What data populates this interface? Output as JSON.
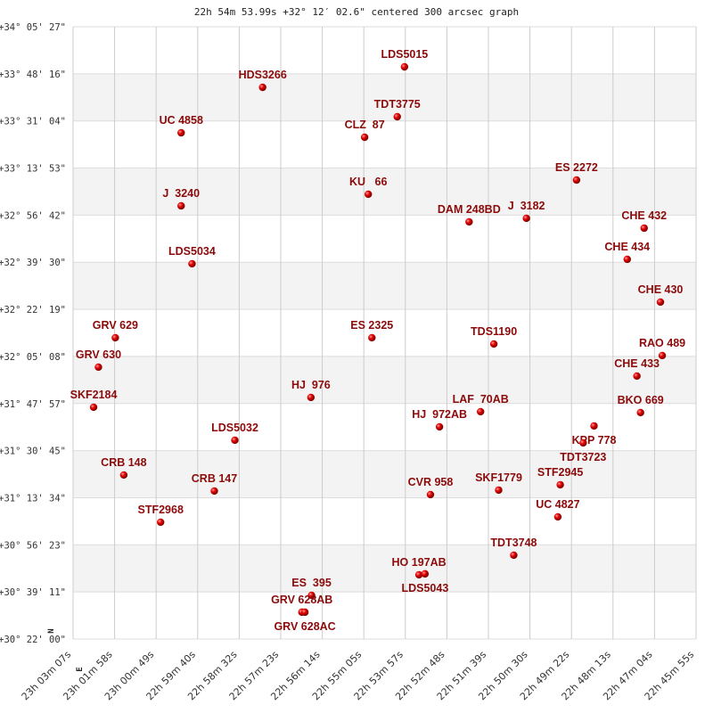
{
  "chart_data": {
    "type": "scatter",
    "title": "22h 54m 53.99s +32° 12′ 02.6\" centered 300 arcsec graph",
    "xlabel": "",
    "ylabel": "",
    "x_axis": "right ascension (decreasing to the right)",
    "xlim": [
      "23:03:07",
      "22:45:55"
    ],
    "ylim": [
      "+30:22:00",
      "+34:05:27"
    ],
    "grid": true,
    "alternating_bands": true,
    "x_ticks": [
      "23h 03m 07s",
      "23h 01m 58s",
      "23h 00m 49s",
      "22h 59m 40s",
      "22h 58m 32s",
      "22h 57m 23s",
      "22h 56m 14s",
      "22h 55m 05s",
      "22h 53m 57s",
      "22h 52m 48s",
      "22h 51m 39s",
      "22h 50m 30s",
      "22h 49m 22s",
      "22h 48m 13s",
      "22h 47m 04s",
      "22h 45m 55s"
    ],
    "y_ticks": [
      "+34° 05' 27\"",
      "+33° 48' 16\"",
      "+33° 31' 04\"",
      "+33° 13' 53\"",
      "+32° 56' 42\"",
      "+32° 39' 30\"",
      "+32° 22' 19\"",
      "+32° 05' 08\"",
      "+31° 47' 57\"",
      "+31° 30' 45\"",
      "+31° 13' 34\"",
      "+30° 56' 23\"",
      "+30° 39' 11\"",
      "+30° 22' 00\""
    ],
    "compass": {
      "north": "N",
      "east": "E"
    },
    "colors": {
      "marker": "#dd0000",
      "label": "#8b0a0a",
      "band": "#f3f3f3",
      "grid": "#cccccc"
    },
    "points": [
      {
        "name": "LDS5015",
        "ra": "22:53:58",
        "dec": "+33:50:49"
      },
      {
        "name": "HDS3266",
        "ra": "22:57:53",
        "dec": "+33:43:20"
      },
      {
        "name": "UC 4858",
        "ra": "23:00:08",
        "dec": "+33:26:45"
      },
      {
        "name": "TDT3775",
        "ra": "22:54:10",
        "dec": "+33:32:36"
      },
      {
        "name": "CLZ  87",
        "ra": "22:55:04",
        "dec": "+33:25:07"
      },
      {
        "name": "ES 2272",
        "ra": "22:49:13",
        "dec": "+33:09:31"
      },
      {
        "name": "KU   66",
        "ra": "22:54:58",
        "dec": "+33:04:19"
      },
      {
        "name": "J  3240",
        "ra": "23:00:08",
        "dec": "+33:00:05"
      },
      {
        "name": "DAM 248BD",
        "ra": "22:52:11",
        "dec": "+32:54:14"
      },
      {
        "name": "J  3182",
        "ra": "22:50:36",
        "dec": "+32:55:32"
      },
      {
        "name": "CHE 432",
        "ra": "22:47:21",
        "dec": "+32:51:57"
      },
      {
        "name": "CHE 434",
        "ra": "22:47:49",
        "dec": "+32:40:34"
      },
      {
        "name": "LDS5034",
        "ra": "22:59:50",
        "dec": "+32:38:57"
      },
      {
        "name": "CHE 430",
        "ra": "22:46:54",
        "dec": "+32:24:58"
      },
      {
        "name": "ES 2325",
        "ra": "22:54:52",
        "dec": "+32:11:57"
      },
      {
        "name": "GRV 629",
        "ra": "23:01:57",
        "dec": "+32:11:57"
      },
      {
        "name": "TDS1190",
        "ra": "22:51:30",
        "dec": "+32:09:41"
      },
      {
        "name": "RAO 489",
        "ra": "22:46:51",
        "dec": "+32:05:27"
      },
      {
        "name": "GRV 630",
        "ra": "23:02:25",
        "dec": "+32:01:13"
      },
      {
        "name": "CHE 433",
        "ra": "22:47:33",
        "dec": "+31:57:58"
      },
      {
        "name": "HJ  976",
        "ra": "22:56:33",
        "dec": "+31:50:10"
      },
      {
        "name": "SKF2184",
        "ra": "23:02:33",
        "dec": "+31:46:35"
      },
      {
        "name": "LAF  70AB",
        "ra": "22:51:52",
        "dec": "+31:44:58"
      },
      {
        "name": "BKO 669",
        "ra": "22:47:27",
        "dec": "+31:44:38"
      },
      {
        "name": "HJ  972AB",
        "ra": "22:53:00",
        "dec": "+31:39:26"
      },
      {
        "name": "KPP 778",
        "ra": "22:48:44",
        "dec": "+31:39:46"
      },
      {
        "name": "LDS5032",
        "ra": "22:58:39",
        "dec": "+31:34:33"
      },
      {
        "name": "TDT3723",
        "ra": "22:49:02",
        "dec": "+31:33:35"
      },
      {
        "name": "CRB 148",
        "ra": "23:01:43",
        "dec": "+31:21:52"
      },
      {
        "name": "STF2945",
        "ra": "22:49:40",
        "dec": "+31:18:18"
      },
      {
        "name": "SKF1779",
        "ra": "22:51:22",
        "dec": "+31:16:21"
      },
      {
        "name": "CRB 147",
        "ra": "22:59:13",
        "dec": "+31:16:01"
      },
      {
        "name": "CVR 958",
        "ra": "22:53:15",
        "dec": "+31:14:43"
      },
      {
        "name": "UC 4827",
        "ra": "22:49:44",
        "dec": "+31:06:35"
      },
      {
        "name": "STF2968",
        "ra": "23:00:42",
        "dec": "+31:04:38"
      },
      {
        "name": "TDT3748",
        "ra": "22:50:57",
        "dec": "+30:52:36"
      },
      {
        "name": "HO 197AB",
        "ra": "22:53:34",
        "dec": "+30:45:27"
      },
      {
        "name": "LDS5043",
        "ra": "22:53:24",
        "dec": "+30:45:47"
      },
      {
        "name": "ES  395",
        "ra": "22:56:32",
        "dec": "+30:37:58"
      },
      {
        "name": "GRV 628AB",
        "ra": "22:56:48",
        "dec": "+30:31:48"
      },
      {
        "name": "GRV 628AC",
        "ra": "22:56:43",
        "dec": "+30:31:48"
      }
    ]
  }
}
